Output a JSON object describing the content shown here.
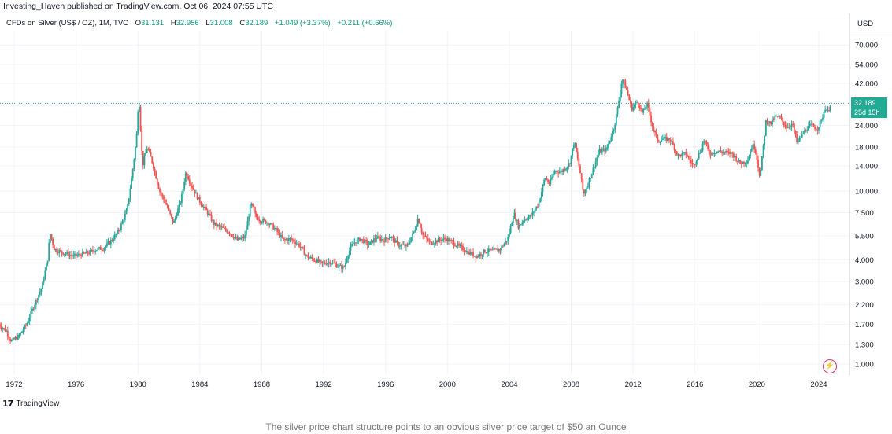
{
  "header": {
    "published_text": "Investing_Haven published on TradingView.com, Oct 06, 2024 07:55 UTC"
  },
  "symbol": {
    "name": "CFDs on Silver (US$ / OZ), 1M, TVC",
    "open_label": "O",
    "open": "31.131",
    "high_label": "H",
    "high": "32.956",
    "low_label": "L",
    "low": "31.008",
    "close_label": "C",
    "close": "32.189",
    "change": "+1.049 (+3.37%)",
    "change2": "+0.211 (+0.66%)"
  },
  "currency": "USD",
  "price_badge": {
    "price": "32.189",
    "countdown": "25d 15h"
  },
  "footer": {
    "brand": "TradingView",
    "logo_text": "17"
  },
  "caption": "The silver price chart structure points to an obvious silver price target of $50 an Ounce",
  "colors": {
    "up": "#26a69a",
    "down": "#ef5350",
    "badge": "#22ab94",
    "grid": "#f0f3fa",
    "lastline": "#22ab94"
  },
  "chart_data": {
    "type": "bar",
    "scale": "log",
    "title": "CFDs on Silver (US$ / OZ), 1M, TVC",
    "ylabel": "USD",
    "ylim": [
      0.9,
      90
    ],
    "xlim": [
      1971,
      2025.8
    ],
    "x_ticks": [
      "1972",
      "1976",
      "1980",
      "1984",
      "1988",
      "1992",
      "1996",
      "2000",
      "2004",
      "2008",
      "2012",
      "2016",
      "2020",
      "2024"
    ],
    "y_ticks": [
      "70.000",
      "54.000",
      "42.000",
      "32.189",
      "24.000",
      "18.000",
      "14.000",
      "10.000",
      "7.500",
      "5.500",
      "4.000",
      "3.000",
      "2.200",
      "1.700",
      "1.300",
      "1.000"
    ],
    "last_price": 32.189,
    "price_path": [
      [
        1971.0,
        1.7
      ],
      [
        1971.5,
        1.55
      ],
      [
        1971.8,
        1.35
      ],
      [
        1972.3,
        1.45
      ],
      [
        1972.8,
        1.7
      ],
      [
        1973.3,
        2.2
      ],
      [
        1973.8,
        2.8
      ],
      [
        1974.2,
        4.2
      ],
      [
        1974.3,
        5.8
      ],
      [
        1974.6,
        4.6
      ],
      [
        1975.2,
        4.4
      ],
      [
        1975.8,
        4.2
      ],
      [
        1976.3,
        4.3
      ],
      [
        1976.8,
        4.4
      ],
      [
        1977.3,
        4.6
      ],
      [
        1977.8,
        4.7
      ],
      [
        1978.3,
        5.2
      ],
      [
        1978.8,
        6.0
      ],
      [
        1979.3,
        7.8
      ],
      [
        1979.6,
        12.0
      ],
      [
        1979.9,
        20.0
      ],
      [
        1980.05,
        36.0
      ],
      [
        1980.3,
        14.0
      ],
      [
        1980.6,
        18.0
      ],
      [
        1980.9,
        15.0
      ],
      [
        1981.4,
        10.0
      ],
      [
        1981.8,
        8.5
      ],
      [
        1982.3,
        6.5
      ],
      [
        1982.8,
        9.0
      ],
      [
        1983.1,
        13.0
      ],
      [
        1983.4,
        11.0
      ],
      [
        1983.9,
        9.0
      ],
      [
        1984.5,
        7.5
      ],
      [
        1984.9,
        6.5
      ],
      [
        1985.3,
        6.2
      ],
      [
        1985.9,
        5.8
      ],
      [
        1986.4,
        5.2
      ],
      [
        1986.9,
        5.4
      ],
      [
        1987.3,
        8.5
      ],
      [
        1987.6,
        7.2
      ],
      [
        1987.9,
        6.8
      ],
      [
        1988.4,
        6.6
      ],
      [
        1988.9,
        6.0
      ],
      [
        1989.4,
        5.2
      ],
      [
        1989.9,
        5.3
      ],
      [
        1990.4,
        4.9
      ],
      [
        1990.9,
        4.2
      ],
      [
        1991.4,
        4.0
      ],
      [
        1991.9,
        3.8
      ],
      [
        1992.4,
        3.9
      ],
      [
        1992.9,
        3.7
      ],
      [
        1993.3,
        3.6
      ],
      [
        1993.6,
        4.4
      ],
      [
        1993.9,
        5.0
      ],
      [
        1994.4,
        5.3
      ],
      [
        1994.9,
        4.9
      ],
      [
        1995.4,
        5.4
      ],
      [
        1995.9,
        5.2
      ],
      [
        1996.3,
        5.5
      ],
      [
        1996.8,
        4.9
      ],
      [
        1997.4,
        4.8
      ],
      [
        1997.9,
        6.0
      ],
      [
        1998.1,
        7.0
      ],
      [
        1998.4,
        5.6
      ],
      [
        1998.9,
        5.0
      ],
      [
        1999.4,
        5.2
      ],
      [
        1999.9,
        5.3
      ],
      [
        2000.4,
        5.0
      ],
      [
        2000.9,
        4.7
      ],
      [
        2001.4,
        4.4
      ],
      [
        2001.9,
        4.2
      ],
      [
        2002.4,
        4.5
      ],
      [
        2002.9,
        4.5
      ],
      [
        2003.4,
        4.6
      ],
      [
        2003.9,
        5.3
      ],
      [
        2004.3,
        7.5
      ],
      [
        2004.6,
        6.2
      ],
      [
        2004.9,
        6.8
      ],
      [
        2005.4,
        7.2
      ],
      [
        2005.9,
        8.5
      ],
      [
        2006.3,
        12.0
      ],
      [
        2006.6,
        11.0
      ],
      [
        2006.9,
        13.0
      ],
      [
        2007.4,
        13.0
      ],
      [
        2007.9,
        14.5
      ],
      [
        2008.2,
        19.5
      ],
      [
        2008.6,
        12.5
      ],
      [
        2008.8,
        9.5
      ],
      [
        2009.3,
        12.5
      ],
      [
        2009.8,
        17.0
      ],
      [
        2010.3,
        17.5
      ],
      [
        2010.8,
        24.0
      ],
      [
        2011.0,
        30.0
      ],
      [
        2011.3,
        45.0
      ],
      [
        2011.6,
        38.0
      ],
      [
        2011.9,
        30.0
      ],
      [
        2012.3,
        33.0
      ],
      [
        2012.6,
        28.0
      ],
      [
        2012.9,
        32.0
      ],
      [
        2013.3,
        23.0
      ],
      [
        2013.6,
        19.5
      ],
      [
        2013.9,
        20.0
      ],
      [
        2014.4,
        20.0
      ],
      [
        2014.9,
        16.0
      ],
      [
        2015.4,
        16.5
      ],
      [
        2015.9,
        14.0
      ],
      [
        2016.4,
        17.5
      ],
      [
        2016.6,
        20.0
      ],
      [
        2016.9,
        16.5
      ],
      [
        2017.4,
        17.0
      ],
      [
        2017.9,
        16.8
      ],
      [
        2018.4,
        16.5
      ],
      [
        2018.9,
        14.5
      ],
      [
        2019.4,
        15.0
      ],
      [
        2019.7,
        18.5
      ],
      [
        2019.9,
        17.5
      ],
      [
        2020.2,
        12.0
      ],
      [
        2020.4,
        17.5
      ],
      [
        2020.6,
        26.0
      ],
      [
        2020.9,
        24.5
      ],
      [
        2021.2,
        27.0
      ],
      [
        2021.5,
        26.5
      ],
      [
        2021.9,
        23.5
      ],
      [
        2022.3,
        24.5
      ],
      [
        2022.6,
        19.0
      ],
      [
        2022.9,
        21.0
      ],
      [
        2023.2,
        23.0
      ],
      [
        2023.5,
        24.0
      ],
      [
        2023.9,
        23.0
      ],
      [
        2024.2,
        26.0
      ],
      [
        2024.4,
        30.5
      ],
      [
        2024.6,
        28.5
      ],
      [
        2024.75,
        32.2
      ]
    ]
  }
}
